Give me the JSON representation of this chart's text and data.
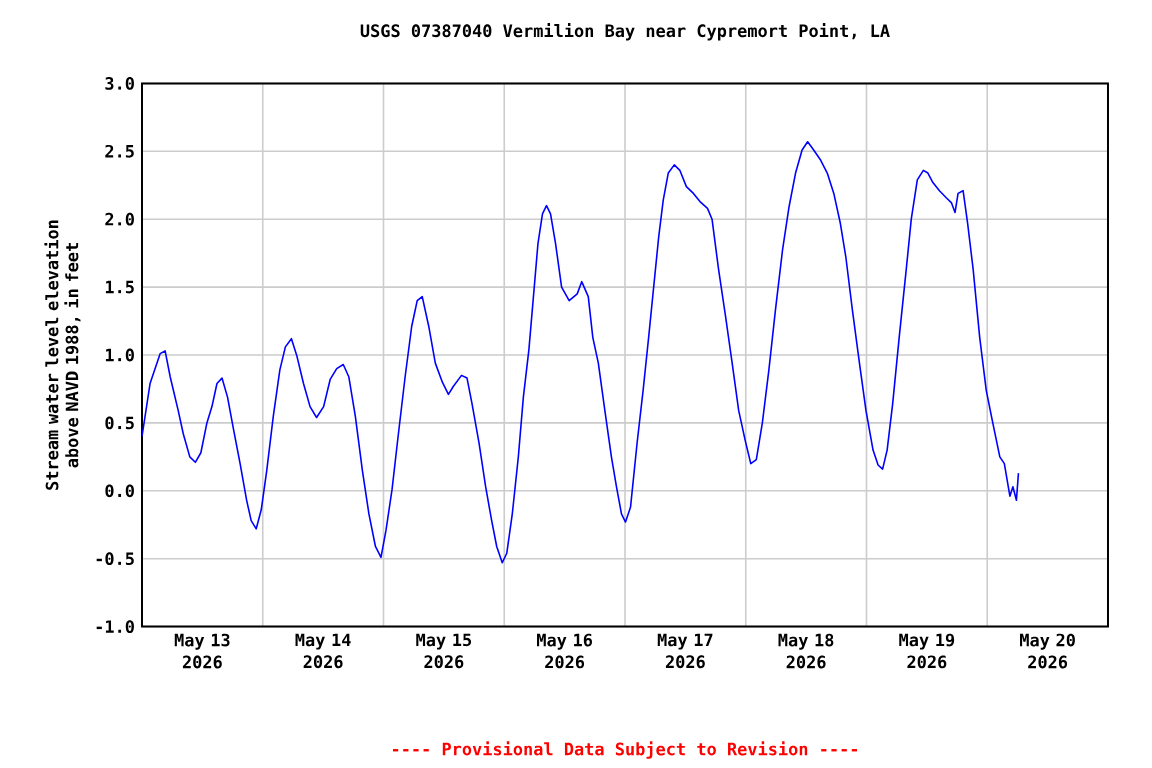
{
  "chart_data": {
    "type": "line",
    "title": "USGS 07387040 Vermilion Bay near Cypremort Point, LA",
    "ylabel": "Stream water level elevation above NAVD 1988, in feet",
    "color": "#0000ff",
    "grid": true,
    "x": [
      "2026-05-13T00:00",
      "2026-05-13T01:36",
      "2026-05-13T03:36",
      "2026-05-13T04:36",
      "2026-05-13T05:36",
      "2026-05-13T07:12",
      "2026-05-13T08:12",
      "2026-05-13T09:30",
      "2026-05-13T10:36",
      "2026-05-13T11:42",
      "2026-05-13T12:54",
      "2026-05-13T13:54",
      "2026-05-13T14:54",
      "2026-05-13T15:54",
      "2026-05-13T17:00",
      "2026-05-13T18:12",
      "2026-05-13T19:30",
      "2026-05-13T20:48",
      "2026-05-13T21:42",
      "2026-05-13T22:42",
      "2026-05-13T23:42",
      "2026-05-14T00:48",
      "2026-05-14T02:06",
      "2026-05-14T03:24",
      "2026-05-14T04:30",
      "2026-05-14T05:42",
      "2026-05-14T06:48",
      "2026-05-14T08:06",
      "2026-05-14T09:24",
      "2026-05-14T10:42",
      "2026-05-14T12:06",
      "2026-05-14T13:24",
      "2026-05-14T14:42",
      "2026-05-14T16:00",
      "2026-05-14T17:06",
      "2026-05-14T18:24",
      "2026-05-14T19:48",
      "2026-05-14T21:06",
      "2026-05-14T22:24",
      "2026-05-14T23:30",
      "2026-05-15T00:30",
      "2026-05-15T01:42",
      "2026-05-15T02:54",
      "2026-05-15T04:18",
      "2026-05-15T05:36",
      "2026-05-15T06:42",
      "2026-05-15T07:42",
      "2026-05-15T09:00",
      "2026-05-15T10:18",
      "2026-05-15T11:42",
      "2026-05-15T12:54",
      "2026-05-15T13:54",
      "2026-05-15T15:30",
      "2026-05-15T16:36",
      "2026-05-15T17:36",
      "2026-05-15T19:00",
      "2026-05-15T20:18",
      "2026-05-15T21:30",
      "2026-05-15T22:30",
      "2026-05-15T23:36",
      "2026-05-16T00:30",
      "2026-05-16T01:36",
      "2026-05-16T02:48",
      "2026-05-16T03:48",
      "2026-05-16T04:54",
      "2026-05-16T05:48",
      "2026-05-16T06:42",
      "2026-05-16T07:36",
      "2026-05-16T08:24",
      "2026-05-16T09:12",
      "2026-05-16T10:12",
      "2026-05-16T11:24",
      "2026-05-16T12:54",
      "2026-05-16T14:30",
      "2026-05-16T15:24",
      "2026-05-16T16:42",
      "2026-05-16T17:36",
      "2026-05-16T18:42",
      "2026-05-16T20:00",
      "2026-05-16T21:18",
      "2026-05-16T22:18",
      "2026-05-16T23:18",
      "2026-05-17T00:06",
      "2026-05-17T01:06",
      "2026-05-17T02:24",
      "2026-05-17T03:36",
      "2026-05-17T04:42",
      "2026-05-17T05:42",
      "2026-05-17T06:42",
      "2026-05-17T07:36",
      "2026-05-17T08:36",
      "2026-05-17T09:48",
      "2026-05-17T10:54",
      "2026-05-17T12:12",
      "2026-05-17T13:36",
      "2026-05-17T14:54",
      "2026-05-17T16:24",
      "2026-05-17T17:18",
      "2026-05-17T18:36",
      "2026-05-17T20:00",
      "2026-05-17T21:18",
      "2026-05-17T22:36",
      "2026-05-17T23:54",
      "2026-05-18T01:00",
      "2026-05-18T02:06",
      "2026-05-18T03:18",
      "2026-05-18T04:36",
      "2026-05-18T05:54",
      "2026-05-18T07:18",
      "2026-05-18T08:36",
      "2026-05-18T09:54",
      "2026-05-18T11:12",
      "2026-05-18T12:18",
      "2026-05-18T13:30",
      "2026-05-18T14:48",
      "2026-05-18T16:12",
      "2026-05-18T17:30",
      "2026-05-18T18:48",
      "2026-05-18T19:54",
      "2026-05-18T21:12",
      "2026-05-18T22:36",
      "2026-05-18T23:54",
      "2026-05-19T01:18",
      "2026-05-19T02:18",
      "2026-05-19T03:12",
      "2026-05-19T04:06",
      "2026-05-19T05:12",
      "2026-05-19T06:30",
      "2026-05-19T07:54",
      "2026-05-19T08:54",
      "2026-05-19T10:06",
      "2026-05-19T11:18",
      "2026-05-19T12:12",
      "2026-05-19T13:12",
      "2026-05-19T14:30",
      "2026-05-19T15:48",
      "2026-05-19T16:54",
      "2026-05-19T17:36",
      "2026-05-19T18:12",
      "2026-05-19T19:12",
      "2026-05-19T20:06",
      "2026-05-19T21:12",
      "2026-05-19T22:30",
      "2026-05-19T23:48",
      "2026-05-20T01:06",
      "2026-05-20T02:30",
      "2026-05-20T03:24",
      "2026-05-20T04:30",
      "2026-05-20T05:06",
      "2026-05-20T05:48",
      "2026-05-20T06:12"
    ],
    "values": [
      0.4,
      0.79,
      1.01,
      1.03,
      0.84,
      0.59,
      0.42,
      0.25,
      0.21,
      0.28,
      0.5,
      0.62,
      0.79,
      0.83,
      0.69,
      0.45,
      0.2,
      -0.07,
      -0.22,
      -0.28,
      -0.14,
      0.15,
      0.55,
      0.89,
      1.06,
      1.12,
      0.99,
      0.79,
      0.62,
      0.54,
      0.62,
      0.82,
      0.9,
      0.93,
      0.84,
      0.55,
      0.15,
      -0.17,
      -0.41,
      -0.49,
      -0.29,
      0.01,
      0.4,
      0.84,
      1.21,
      1.4,
      1.43,
      1.21,
      0.94,
      0.8,
      0.71,
      0.77,
      0.85,
      0.83,
      0.64,
      0.35,
      0.03,
      -0.22,
      -0.41,
      -0.53,
      -0.46,
      -0.17,
      0.25,
      0.69,
      1.04,
      1.43,
      1.82,
      2.04,
      2.1,
      2.04,
      1.82,
      1.5,
      1.4,
      1.45,
      1.54,
      1.43,
      1.13,
      0.94,
      0.59,
      0.25,
      0.03,
      -0.17,
      -0.23,
      -0.12,
      0.35,
      0.74,
      1.13,
      1.5,
      1.87,
      2.14,
      2.34,
      2.4,
      2.36,
      2.24,
      2.19,
      2.13,
      2.08,
      2.0,
      1.63,
      1.28,
      0.94,
      0.59,
      0.37,
      0.2,
      0.23,
      0.5,
      0.89,
      1.33,
      1.77,
      2.09,
      2.34,
      2.51,
      2.57,
      2.51,
      2.44,
      2.34,
      2.19,
      1.97,
      1.72,
      1.33,
      0.94,
      0.59,
      0.3,
      0.19,
      0.16,
      0.3,
      0.64,
      1.13,
      1.63,
      2.0,
      2.29,
      2.36,
      2.34,
      2.27,
      2.21,
      2.16,
      2.12,
      2.05,
      2.19,
      2.21,
      1.97,
      1.63,
      1.13,
      0.74,
      0.5,
      0.25,
      0.2,
      -0.04,
      0.03,
      -0.07,
      0.13
    ],
    "xlim": [
      "2026-05-13",
      "2026-05-21"
    ],
    "xticks": [
      {
        "value": "2026-05-13T12:00",
        "label": "May 13 2026"
      },
      {
        "value": "2026-05-14T12:00",
        "label": "May 14 2026"
      },
      {
        "value": "2026-05-15T12:00",
        "label": "May 15 2026"
      },
      {
        "value": "2026-05-16T12:00",
        "label": "May 16 2026"
      },
      {
        "value": "2026-05-17T12:00",
        "label": "May 17 2026"
      },
      {
        "value": "2026-05-18T12:00",
        "label": "May 18 2026"
      },
      {
        "value": "2026-05-19T12:00",
        "label": "May 19 2026"
      },
      {
        "value": "2026-05-20T12:00",
        "label": "May 20 2026"
      },
      {
        "value": "2026-05-14",
        "label": null
      },
      {
        "value": "2026-05-15",
        "label": null
      },
      {
        "value": "2026-05-16",
        "label": null
      },
      {
        "value": "2026-05-17",
        "label": null
      },
      {
        "value": "2026-05-18",
        "label": null
      },
      {
        "value": "2026-05-19",
        "label": null
      },
      {
        "value": "2026-05-20",
        "label": null
      }
    ],
    "ylim": [
      -1.0,
      3.0
    ],
    "yticks": [
      {
        "value": -1.0,
        "label": "-1.0"
      },
      {
        "value": -0.5,
        "label": "-0.5"
      },
      {
        "value": 0.0,
        "label": "0.0"
      },
      {
        "value": 0.5,
        "label": "0.5"
      },
      {
        "value": 1.0,
        "label": "1.0"
      },
      {
        "value": 1.5,
        "label": "1.5"
      },
      {
        "value": 2.0,
        "label": "2.0"
      },
      {
        "value": 2.5,
        "label": "2.5"
      },
      {
        "value": 3.0,
        "label": "3.0"
      }
    ],
    "annotations": [
      "---- Provisional Data Subject to Revision ----"
    ]
  }
}
